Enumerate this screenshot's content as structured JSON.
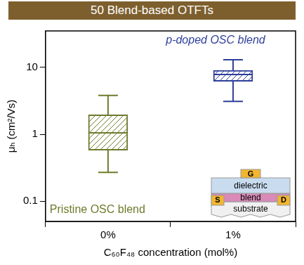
{
  "chart_data": {
    "type": "box",
    "title": "50 Blend-based OTFTs",
    "x_label": "C₆₀F₄₈ concentration (mol%)",
    "y_label": "μₕ (cm²/Vs)",
    "categories": [
      "0%",
      "1%"
    ],
    "colors": [
      "#6e7b2c",
      "#2f3f9a"
    ],
    "min": [
      0.27,
      3.1
    ],
    "q1": [
      0.58,
      6.2
    ],
    "median": [
      1.05,
      7.8
    ],
    "q3": [
      1.95,
      9.0
    ],
    "max": [
      3.8,
      13
    ],
    "log": "y",
    "ylim": [
      0.05,
      35
    ],
    "yticks": [
      0.1,
      1,
      10
    ],
    "grid": false,
    "annotations": [
      {
        "text": "Pristine OSC blend",
        "color": "#6e7b2c"
      },
      {
        "text": "p-doped OSC blend",
        "color": "#2f3f9a"
      }
    ],
    "inset": {
      "gate": "G",
      "layers": [
        "dielectric",
        "blend",
        "substrate"
      ],
      "source": "S",
      "drain": "D"
    }
  }
}
